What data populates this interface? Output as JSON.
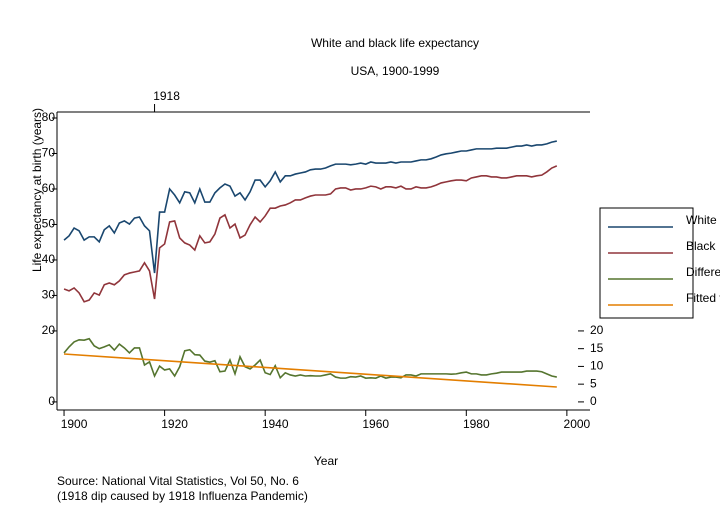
{
  "chart_data": {
    "type": "line",
    "title": "White and black life expectancy",
    "subtitle": "USA, 1900-1999",
    "xlabel": "Year",
    "ylabel": "Life expectancy at birth (years)",
    "notes": [
      "Source: National Vital Statistics, Vol 50, No. 6",
      "(1918 dip caused by 1918 Influenza Pandemic)"
    ],
    "x": [
      1900,
      1901,
      1902,
      1903,
      1904,
      1905,
      1906,
      1907,
      1908,
      1909,
      1910,
      1911,
      1912,
      1913,
      1914,
      1915,
      1916,
      1917,
      1918,
      1919,
      1920,
      1921,
      1922,
      1923,
      1924,
      1925,
      1926,
      1927,
      1928,
      1929,
      1930,
      1931,
      1932,
      1933,
      1934,
      1935,
      1936,
      1937,
      1938,
      1939,
      1940,
      1941,
      1942,
      1943,
      1944,
      1945,
      1946,
      1947,
      1948,
      1949,
      1950,
      1951,
      1952,
      1953,
      1954,
      1955,
      1956,
      1957,
      1958,
      1959,
      1960,
      1961,
      1962,
      1963,
      1964,
      1965,
      1966,
      1967,
      1968,
      1969,
      1970,
      1971,
      1972,
      1973,
      1974,
      1975,
      1976,
      1977,
      1978,
      1979,
      1980,
      1981,
      1982,
      1983,
      1984,
      1985,
      1986,
      1987,
      1988,
      1989,
      1990,
      1991,
      1992,
      1993,
      1994,
      1995,
      1996,
      1997,
      1998
    ],
    "series": [
      {
        "name": "White",
        "color": "#1a476f",
        "values": [
          45.6,
          46.8,
          49.0,
          48.2,
          45.6,
          46.5,
          46.5,
          45.1,
          48.5,
          49.6,
          47.6,
          50.4,
          51.0,
          50.1,
          51.8,
          52.1,
          49.6,
          48.2,
          36.3,
          53.5,
          53.5,
          60.0,
          58.3,
          56.1,
          59.2,
          58.9,
          56.1,
          60.0,
          56.3,
          56.3,
          58.9,
          60.3,
          61.4,
          60.8,
          58.0,
          58.9,
          56.9,
          59.2,
          62.5,
          62.5,
          60.6,
          62.3,
          64.8,
          62.0,
          63.7,
          63.7,
          64.2,
          64.5,
          64.8,
          65.4,
          65.6,
          65.6,
          65.9,
          66.5,
          67.0,
          67.0,
          67.0,
          66.8,
          67.0,
          67.3,
          67.0,
          67.6,
          67.3,
          67.3,
          67.3,
          67.6,
          67.3,
          67.6,
          67.6,
          67.6,
          67.9,
          68.2,
          68.2,
          68.5,
          69.0,
          69.6,
          69.9,
          70.1,
          70.4,
          70.7,
          70.7,
          71.0,
          71.3,
          71.3,
          71.3,
          71.3,
          71.5,
          71.5,
          71.5,
          71.8,
          72.1,
          72.1,
          72.4,
          72.1,
          72.4,
          72.4,
          72.7,
          73.2,
          73.5
        ]
      },
      {
        "name": "Black",
        "color": "#90353b",
        "values": [
          31.8,
          31.3,
          32.1,
          30.7,
          28.2,
          28.7,
          30.7,
          30.1,
          33.0,
          33.5,
          33.0,
          34.1,
          35.8,
          36.3,
          36.6,
          36.9,
          39.2,
          36.9,
          29.0,
          43.4,
          44.5,
          50.7,
          51.0,
          46.2,
          44.8,
          44.2,
          42.8,
          46.8,
          44.8,
          45.1,
          47.3,
          51.8,
          52.7,
          49.0,
          50.1,
          46.2,
          47.0,
          49.9,
          52.1,
          50.7,
          52.4,
          54.6,
          54.6,
          55.2,
          55.5,
          56.1,
          56.9,
          56.9,
          57.5,
          58.0,
          58.3,
          58.3,
          58.3,
          58.6,
          60.0,
          60.3,
          60.3,
          59.7,
          60.0,
          60.0,
          60.3,
          60.8,
          60.6,
          60.0,
          60.6,
          60.6,
          60.3,
          60.8,
          60.0,
          60.0,
          60.6,
          60.3,
          60.3,
          60.6,
          61.1,
          61.7,
          62.0,
          62.3,
          62.5,
          62.5,
          62.3,
          63.1,
          63.4,
          63.7,
          63.7,
          63.4,
          63.4,
          63.1,
          63.1,
          63.4,
          63.7,
          63.7,
          63.7,
          63.4,
          63.7,
          63.9,
          64.8,
          65.9,
          66.5
        ]
      },
      {
        "name": "Difference",
        "color": "#55752f",
        "axis": "y2",
        "values": [
          13.8,
          15.5,
          16.9,
          17.5,
          17.4,
          17.8,
          15.8,
          15.0,
          15.5,
          16.1,
          14.6,
          16.3,
          15.2,
          13.8,
          15.2,
          15.2,
          10.4,
          11.3,
          7.3,
          10.1,
          9.0,
          9.3,
          7.3,
          9.9,
          14.4,
          14.7,
          13.3,
          13.2,
          11.5,
          11.2,
          11.6,
          8.5,
          8.7,
          11.8,
          7.9,
          12.7,
          9.9,
          9.3,
          10.4,
          11.8,
          8.2,
          7.7,
          10.2,
          6.8,
          8.2,
          7.6,
          7.3,
          7.6,
          7.3,
          7.4,
          7.3,
          7.3,
          7.6,
          7.9,
          7.0,
          6.7,
          6.7,
          7.1,
          7.0,
          7.3,
          6.7,
          6.8,
          6.7,
          7.3,
          6.7,
          7.0,
          7.0,
          6.8,
          7.6,
          7.6,
          7.3,
          7.9,
          7.9,
          7.9,
          7.9,
          7.9,
          7.9,
          7.8,
          7.9,
          8.2,
          8.4,
          7.9,
          7.9,
          7.6,
          7.6,
          7.9,
          8.1,
          8.4,
          8.4,
          8.4,
          8.4,
          8.4,
          8.7,
          8.7,
          8.7,
          8.5,
          7.9,
          7.3,
          7.0
        ]
      },
      {
        "name": "Fitted values",
        "color": "#e37e00",
        "axis": "y2",
        "x": [
          1900,
          1998
        ],
        "values": [
          13.5,
          4.2
        ]
      }
    ],
    "xlim": [
      1898.6,
      2004.6
    ],
    "xticks": [
      1900,
      1920,
      1940,
      1960,
      1980,
      2000
    ],
    "x2ticks": [
      1918
    ],
    "ylim": [
      -2,
      80
    ],
    "yticks": [
      0,
      20,
      30,
      40,
      50,
      60,
      70,
      80
    ],
    "y2lim": [
      -2,
      80
    ],
    "y2ticks": [
      0,
      5,
      10,
      15,
      20
    ],
    "legend": "right"
  }
}
